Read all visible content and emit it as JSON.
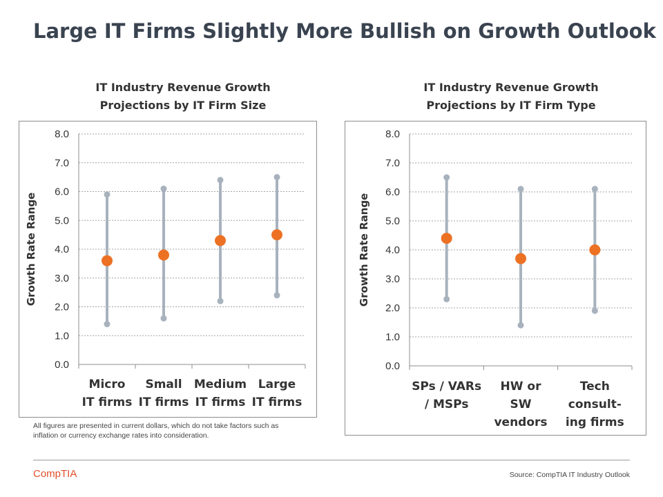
{
  "slide_title": "Large IT Firms Slightly More Bullish on Growth Outlook",
  "footnote": "All figures are presented in current dollars, which do not take factors such as inflation or currency exchange rates into consideration.",
  "logo_text": "CompTIA",
  "source": "Source: CompTIA IT Industry Outlook",
  "colors": {
    "range": "#a7b2bd",
    "point": "#ec7123",
    "grid": "#a0a0a0",
    "axis": "#8c8c8c"
  },
  "chart_data": [
    {
      "type": "scatter",
      "title_lines": [
        "IT Industry  Revenue Growth",
        "Projections  by  IT Firm Size"
      ],
      "ylabel": "Growth  Rate Range",
      "ylim": [
        0,
        8
      ],
      "yticks": [
        "0.0",
        "1.0",
        "2.0",
        "3.0",
        "4.0",
        "5.0",
        "6.0",
        "7.0",
        "8.0"
      ],
      "grid": true,
      "categories": [
        [
          "Micro",
          "IT firms"
        ],
        [
          "Small",
          "IT firms"
        ],
        [
          "Medium",
          "IT firms"
        ],
        [
          "Large",
          "IT firms"
        ]
      ],
      "low": [
        1.4,
        1.6,
        2.2,
        2.4
      ],
      "high": [
        5.9,
        6.1,
        6.4,
        6.5
      ],
      "values": [
        3.6,
        3.8,
        4.3,
        4.5
      ]
    },
    {
      "type": "scatter",
      "title_lines": [
        "IT Industry  Revenue Growth",
        "Projections  by  IT Firm Type"
      ],
      "ylabel": "Growth  Rate Range",
      "ylim": [
        0,
        8
      ],
      "yticks": [
        "0.0",
        "1.0",
        "2.0",
        "3.0",
        "4.0",
        "5.0",
        "6.0",
        "7.0",
        "8.0"
      ],
      "grid": true,
      "categories": [
        [
          "SPs / VARs",
          "/ MSPs"
        ],
        [
          "HW or",
          "SW",
          "vendors"
        ],
        [
          "Tech",
          "consult-",
          "ing firms"
        ]
      ],
      "low": [
        2.3,
        1.4,
        1.9
      ],
      "high": [
        6.5,
        6.1,
        6.1
      ],
      "values": [
        4.4,
        3.7,
        4.0
      ]
    }
  ]
}
